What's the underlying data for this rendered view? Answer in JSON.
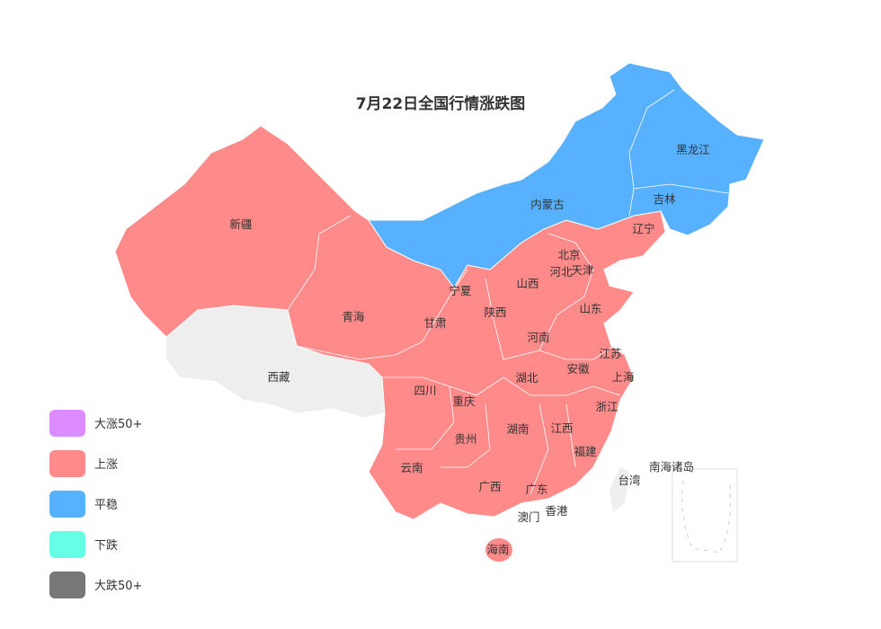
{
  "title": "7月22日全国行情涨跌图",
  "legend": [
    {
      "label": "大涨50+",
      "color": "#dd8cff"
    },
    {
      "label": "上涨",
      "color": "#ff8a8a"
    },
    {
      "label": "平稳",
      "color": "#58b1ff"
    },
    {
      "label": "下跌",
      "color": "#66ffe6"
    },
    {
      "label": "大跌50+",
      "color": "#777777"
    }
  ],
  "no_data_color": "#eeeeee",
  "regions": [
    {
      "name": "新疆",
      "status": "上涨"
    },
    {
      "name": "西藏",
      "status": "无数据"
    },
    {
      "name": "青海",
      "status": "上涨"
    },
    {
      "name": "甘肃",
      "status": "上涨"
    },
    {
      "name": "宁夏",
      "status": "上涨"
    },
    {
      "name": "内蒙古",
      "status": "平稳"
    },
    {
      "name": "黑龙江",
      "status": "平稳"
    },
    {
      "name": "吉林",
      "status": "平稳"
    },
    {
      "name": "辽宁",
      "status": "上涨"
    },
    {
      "name": "北京",
      "status": "上涨"
    },
    {
      "name": "天津",
      "status": "上涨"
    },
    {
      "name": "河北",
      "status": "上涨"
    },
    {
      "name": "山西",
      "status": "上涨"
    },
    {
      "name": "陕西",
      "status": "上涨"
    },
    {
      "name": "山东",
      "status": "上涨"
    },
    {
      "name": "河南",
      "status": "上涨"
    },
    {
      "name": "江苏",
      "status": "上涨"
    },
    {
      "name": "安徽",
      "status": "上涨"
    },
    {
      "name": "上海",
      "status": "上涨"
    },
    {
      "name": "湖北",
      "status": "上涨"
    },
    {
      "name": "四川",
      "status": "上涨"
    },
    {
      "name": "重庆",
      "status": "上涨"
    },
    {
      "name": "浙江",
      "status": "上涨"
    },
    {
      "name": "贵州",
      "status": "上涨"
    },
    {
      "name": "湖南",
      "status": "上涨"
    },
    {
      "name": "江西",
      "status": "上涨"
    },
    {
      "name": "福建",
      "status": "上涨"
    },
    {
      "name": "云南",
      "status": "上涨"
    },
    {
      "name": "广西",
      "status": "上涨"
    },
    {
      "name": "广东",
      "status": "上涨"
    },
    {
      "name": "台湾",
      "status": "无数据"
    },
    {
      "name": "香港",
      "status": "上涨"
    },
    {
      "name": "澳门",
      "status": "上涨"
    },
    {
      "name": "海南",
      "status": "上涨"
    },
    {
      "name": "南海诸岛",
      "status": "无数据"
    }
  ]
}
